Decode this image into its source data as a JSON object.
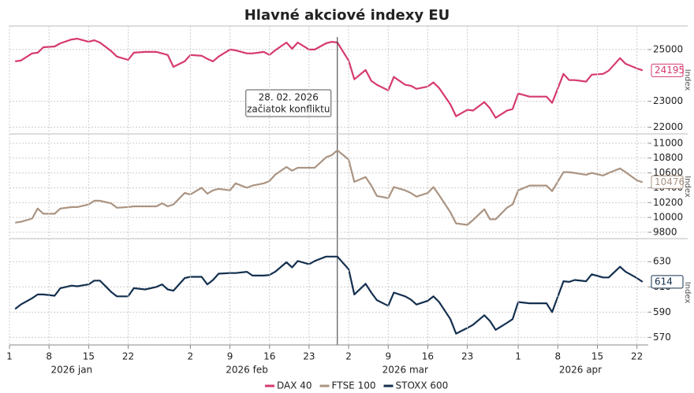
{
  "title": "Hlavné akciové indexy EU",
  "chart_data": [
    {
      "type": "line",
      "ylabel": "Index",
      "x": [
        "2026-01-02",
        "2026-01-03",
        "2026-01-05",
        "2026-01-06",
        "2026-01-07",
        "2026-01-09",
        "2026-01-10",
        "2026-01-12",
        "2026-01-13",
        "2026-01-15",
        "2026-01-16",
        "2026-01-17",
        "2026-01-19",
        "2026-01-20",
        "2026-01-22",
        "2026-01-23",
        "2026-01-25",
        "2026-01-27",
        "2026-01-28",
        "2026-01-29",
        "2026-01-30",
        "2026-02-01",
        "2026-02-02",
        "2026-02-04",
        "2026-02-05",
        "2026-02-06",
        "2026-02-07",
        "2026-02-09",
        "2026-02-10",
        "2026-02-12",
        "2026-02-13",
        "2026-02-15",
        "2026-02-16",
        "2026-02-17",
        "2026-02-19",
        "2026-02-20",
        "2026-02-21",
        "2026-02-23",
        "2026-02-24",
        "2026-02-26",
        "2026-02-27",
        "2026-02-28",
        "2026-03-02",
        "2026-03-03",
        "2026-03-05",
        "2026-03-06",
        "2026-03-07",
        "2026-03-09",
        "2026-03-10",
        "2026-03-12",
        "2026-03-13",
        "2026-03-14",
        "2026-03-16",
        "2026-03-17",
        "2026-03-18",
        "2026-03-20",
        "2026-03-21",
        "2026-03-23",
        "2026-03-24",
        "2026-03-26",
        "2026-03-27",
        "2026-03-28",
        "2026-03-30",
        "2026-03-31",
        "2026-04-01",
        "2026-04-03",
        "2026-04-04",
        "2026-04-06",
        "2026-04-07",
        "2026-04-09",
        "2026-04-10",
        "2026-04-11",
        "2026-04-13",
        "2026-04-14",
        "2026-04-16",
        "2026-04-17",
        "2026-04-19",
        "2026-04-20",
        "2026-04-22",
        "2026-04-23"
      ],
      "series": [
        {
          "name": "DAX 40",
          "color": "#d63a6e",
          "values": [
            24545,
            24575,
            24850,
            24880,
            25090,
            25120,
            25240,
            25390,
            25420,
            25300,
            25360,
            25270,
            24940,
            24730,
            24600,
            24880,
            24910,
            24910,
            24850,
            24790,
            24330,
            24545,
            24790,
            24760,
            24640,
            24545,
            24730,
            25000,
            24970,
            24850,
            24850,
            24910,
            24790,
            24970,
            25270,
            25030,
            25270,
            25000,
            25000,
            25240,
            25300,
            25270,
            24575,
            23850,
            24210,
            23790,
            23640,
            23420,
            23940,
            23640,
            23600,
            23480,
            23570,
            23730,
            23510,
            22880,
            22420,
            22670,
            22640,
            22970,
            22730,
            22360,
            22640,
            22700,
            23300,
            23180,
            23180,
            23180,
            22940,
            24060,
            23820,
            23820,
            23760,
            24030,
            24060,
            24180,
            24670,
            24450,
            24270,
            24195
          ]
        }
      ],
      "xlim": [
        "2026-01-01",
        "2026-04-24"
      ],
      "ylim": [
        21800,
        25850
      ],
      "yticks": [
        22000,
        23000,
        25000
      ],
      "grid": true,
      "annotation": {
        "x": "2026-02-28",
        "lines": [
          "28. 02. 2026",
          "začiatok konfliktu"
        ]
      }
    },
    {
      "type": "line",
      "ylabel": "Index",
      "x": [
        "2026-01-02",
        "2026-01-03",
        "2026-01-05",
        "2026-01-06",
        "2026-01-07",
        "2026-01-09",
        "2026-01-10",
        "2026-01-12",
        "2026-01-13",
        "2026-01-15",
        "2026-01-16",
        "2026-01-17",
        "2026-01-19",
        "2026-01-20",
        "2026-01-22",
        "2026-01-23",
        "2026-01-25",
        "2026-01-27",
        "2026-01-28",
        "2026-01-29",
        "2026-01-30",
        "2026-02-01",
        "2026-02-02",
        "2026-02-04",
        "2026-02-05",
        "2026-02-06",
        "2026-02-07",
        "2026-02-09",
        "2026-02-10",
        "2026-02-12",
        "2026-02-13",
        "2026-02-15",
        "2026-02-16",
        "2026-02-17",
        "2026-02-19",
        "2026-02-20",
        "2026-02-21",
        "2026-02-23",
        "2026-02-24",
        "2026-02-26",
        "2026-02-27",
        "2026-02-28",
        "2026-03-02",
        "2026-03-03",
        "2026-03-05",
        "2026-03-06",
        "2026-03-07",
        "2026-03-09",
        "2026-03-10",
        "2026-03-12",
        "2026-03-13",
        "2026-03-14",
        "2026-03-16",
        "2026-03-17",
        "2026-03-18",
        "2026-03-20",
        "2026-03-21",
        "2026-03-23",
        "2026-03-24",
        "2026-03-26",
        "2026-03-27",
        "2026-03-28",
        "2026-03-30",
        "2026-03-31",
        "2026-04-01",
        "2026-04-03",
        "2026-04-04",
        "2026-04-06",
        "2026-04-07",
        "2026-04-09",
        "2026-04-10",
        "2026-04-11",
        "2026-04-13",
        "2026-04-14",
        "2026-04-16",
        "2026-04-17",
        "2026-04-19",
        "2026-04-20",
        "2026-04-22",
        "2026-04-23"
      ],
      "series": [
        {
          "name": "FTSE 100",
          "color": "#ab9482",
          "values": [
            9930,
            9940,
            9985,
            10120,
            10050,
            10050,
            10120,
            10140,
            10140,
            10175,
            10225,
            10225,
            10190,
            10130,
            10140,
            10150,
            10150,
            10150,
            10190,
            10150,
            10175,
            10330,
            10310,
            10400,
            10320,
            10365,
            10385,
            10365,
            10460,
            10400,
            10430,
            10460,
            10490,
            10575,
            10680,
            10630,
            10670,
            10670,
            10670,
            10810,
            10840,
            10905,
            10780,
            10480,
            10545,
            10430,
            10290,
            10260,
            10410,
            10365,
            10330,
            10280,
            10330,
            10410,
            10300,
            10070,
            9920,
            9900,
            9965,
            10110,
            9975,
            9975,
            10130,
            10175,
            10365,
            10430,
            10430,
            10430,
            10355,
            10610,
            10610,
            10600,
            10575,
            10600,
            10565,
            10600,
            10660,
            10610,
            10500,
            10476
          ]
        }
      ],
      "xlim": [
        "2026-01-01",
        "2026-04-24"
      ],
      "ylim": [
        9725,
        11105
      ],
      "yticks": [
        9800,
        10000,
        10200,
        10400,
        10600,
        10800,
        11000
      ],
      "grid": true
    },
    {
      "type": "line",
      "ylabel": "Index",
      "x": [
        "2026-01-02",
        "2026-01-03",
        "2026-01-05",
        "2026-01-06",
        "2026-01-07",
        "2026-01-09",
        "2026-01-10",
        "2026-01-12",
        "2026-01-13",
        "2026-01-15",
        "2026-01-16",
        "2026-01-17",
        "2026-01-19",
        "2026-01-20",
        "2026-01-22",
        "2026-01-23",
        "2026-01-25",
        "2026-01-27",
        "2026-01-28",
        "2026-01-29",
        "2026-01-30",
        "2026-02-01",
        "2026-02-02",
        "2026-02-04",
        "2026-02-05",
        "2026-02-06",
        "2026-02-07",
        "2026-02-09",
        "2026-02-10",
        "2026-02-12",
        "2026-02-13",
        "2026-02-15",
        "2026-02-16",
        "2026-02-17",
        "2026-02-19",
        "2026-02-20",
        "2026-02-21",
        "2026-02-23",
        "2026-02-24",
        "2026-02-26",
        "2026-02-27",
        "2026-02-28",
        "2026-03-02",
        "2026-03-03",
        "2026-03-05",
        "2026-03-06",
        "2026-03-07",
        "2026-03-09",
        "2026-03-10",
        "2026-03-12",
        "2026-03-13",
        "2026-03-14",
        "2026-03-16",
        "2026-03-17",
        "2026-03-18",
        "2026-03-20",
        "2026-03-21",
        "2026-03-23",
        "2026-03-24",
        "2026-03-26",
        "2026-03-27",
        "2026-03-28",
        "2026-03-30",
        "2026-03-31",
        "2026-04-01",
        "2026-04-03",
        "2026-04-04",
        "2026-04-06",
        "2026-04-07",
        "2026-04-09",
        "2026-04-10",
        "2026-04-11",
        "2026-04-13",
        "2026-04-14",
        "2026-04-16",
        "2026-04-17",
        "2026-04-19",
        "2026-04-20",
        "2026-04-22",
        "2026-04-23"
      ],
      "series": [
        {
          "name": "STOXX 600",
          "color": "#14304f",
          "values": [
            592.5,
            596,
            601,
            604,
            604,
            603,
            609,
            611,
            610.5,
            612,
            615,
            615,
            606,
            602.5,
            602.5,
            609,
            608,
            610,
            612,
            608,
            607,
            617,
            618,
            618,
            612,
            615.5,
            620.5,
            621,
            621,
            622,
            619,
            619,
            619.5,
            622,
            629.5,
            625.5,
            630.5,
            628,
            630.5,
            634,
            634,
            634,
            624,
            604,
            612.5,
            605.5,
            599.5,
            595,
            605.5,
            602.5,
            600,
            596,
            599,
            602.5,
            598,
            584.5,
            573,
            577.5,
            580,
            587.5,
            583,
            576,
            581.5,
            584.5,
            598,
            597,
            597,
            597,
            590,
            614.5,
            614,
            615.5,
            614.5,
            620,
            617.5,
            617.5,
            626,
            622,
            617,
            614
          ]
        }
      ],
      "xlim": [
        "2026-01-01",
        "2026-04-24"
      ],
      "ylim": [
        564,
        647
      ],
      "yticks": [
        570,
        590,
        610,
        630
      ],
      "grid": true,
      "xticks": [
        {
          "value": "2026-01-01",
          "label": "1"
        },
        {
          "value": "2026-01-08",
          "label": "8"
        },
        {
          "value": "2026-01-15",
          "label": "15"
        },
        {
          "value": "2026-01-22",
          "label": "22"
        },
        {
          "value": "2026-02-02",
          "label": "2"
        },
        {
          "value": "2026-02-09",
          "label": "9"
        },
        {
          "value": "2026-02-16",
          "label": "16"
        },
        {
          "value": "2026-02-23",
          "label": "23"
        },
        {
          "value": "2026-03-02",
          "label": "2"
        },
        {
          "value": "2026-03-09",
          "label": "9"
        },
        {
          "value": "2026-03-16",
          "label": "16"
        },
        {
          "value": "2026-03-23",
          "label": "23"
        },
        {
          "value": "2026-04-01",
          "label": "1"
        },
        {
          "value": "2026-04-08",
          "label": "8"
        },
        {
          "value": "2026-04-15",
          "label": "15"
        },
        {
          "value": "2026-04-22",
          "label": "22"
        }
      ],
      "xmonths": [
        {
          "value": "2026-01-12",
          "label": "2026 jan"
        },
        {
          "value": "2026-02-12",
          "label": "2026 feb"
        },
        {
          "value": "2026-03-12",
          "label": "2026 mar"
        },
        {
          "value": "2026-04-12",
          "label": "2026 apr"
        }
      ]
    }
  ]
}
